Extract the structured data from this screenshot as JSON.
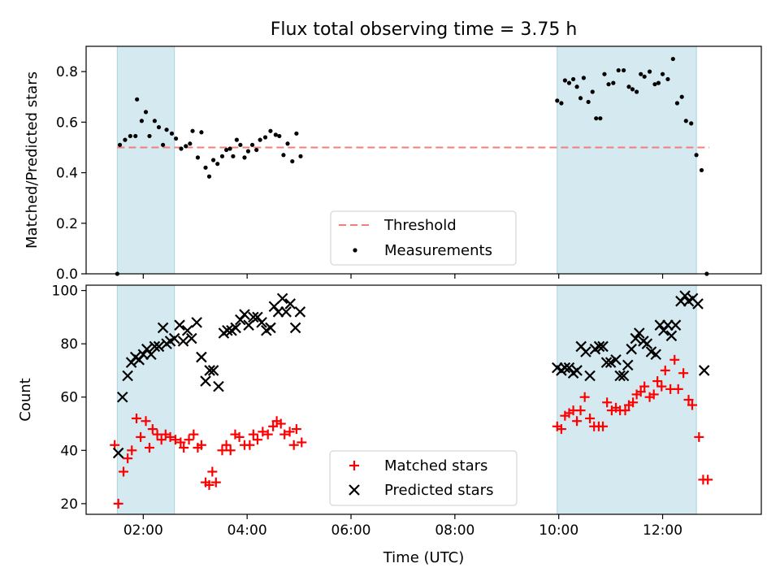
{
  "figure_title": "Flux total observing time = 3.75 h",
  "chart_data": [
    {
      "type": "scatter",
      "title": "Flux total observing time = 3.75 h",
      "xlabel": "",
      "ylabel": "Matched/Predicted stars",
      "xlim": [
        0.9,
        13.9
      ],
      "ylim": [
        0.0,
        0.9
      ],
      "x_unit": "hours UTC",
      "x_tick_labels": [
        "02:00",
        "04:00",
        "06:00",
        "08:00",
        "10:00",
        "12:00"
      ],
      "x_tick_values": [
        2,
        4,
        6,
        8,
        10,
        12
      ],
      "y_tick_labels": [
        "0.0",
        "0.2",
        "0.4",
        "0.6",
        "0.8"
      ],
      "y_tick_values": [
        0.0,
        0.2,
        0.4,
        0.6,
        0.8
      ],
      "shaded_spans": [
        [
          1.5,
          2.6
        ],
        [
          9.97,
          12.65
        ]
      ],
      "shade_color": "#d4eaf0",
      "threshold": {
        "name": "Threshold",
        "y": 0.5,
        "x_range": [
          1.5,
          12.9
        ],
        "color": "#f47c7c"
      },
      "series": [
        {
          "name": "Measurements",
          "color": "#000000",
          "marker": "dot",
          "points": [
            [
              1.5,
              0.0
            ],
            [
              1.55,
              0.51
            ],
            [
              1.65,
              0.53
            ],
            [
              1.75,
              0.545
            ],
            [
              1.85,
              0.545
            ],
            [
              1.88,
              0.69
            ],
            [
              1.97,
              0.605
            ],
            [
              2.05,
              0.64
            ],
            [
              2.12,
              0.545
            ],
            [
              2.22,
              0.605
            ],
            [
              2.3,
              0.58
            ],
            [
              2.38,
              0.51
            ],
            [
              2.45,
              0.57
            ],
            [
              2.55,
              0.555
            ],
            [
              2.63,
              0.535
            ],
            [
              2.73,
              0.495
            ],
            [
              2.82,
              0.505
            ],
            [
              2.9,
              0.515
            ],
            [
              2.95,
              0.565
            ],
            [
              3.05,
              0.46
            ],
            [
              3.12,
              0.56
            ],
            [
              3.2,
              0.42
            ],
            [
              3.27,
              0.385
            ],
            [
              3.35,
              0.45
            ],
            [
              3.43,
              0.435
            ],
            [
              3.52,
              0.465
            ],
            [
              3.6,
              0.49
            ],
            [
              3.67,
              0.495
            ],
            [
              3.73,
              0.465
            ],
            [
              3.8,
              0.53
            ],
            [
              3.87,
              0.51
            ],
            [
              3.95,
              0.46
            ],
            [
              4.02,
              0.485
            ],
            [
              4.1,
              0.51
            ],
            [
              4.18,
              0.49
            ],
            [
              4.25,
              0.53
            ],
            [
              4.35,
              0.54
            ],
            [
              4.45,
              0.565
            ],
            [
              4.55,
              0.55
            ],
            [
              4.62,
              0.545
            ],
            [
              4.7,
              0.47
            ],
            [
              4.78,
              0.515
            ],
            [
              4.87,
              0.445
            ],
            [
              4.95,
              0.555
            ],
            [
              5.03,
              0.465
            ],
            [
              9.97,
              0.685
            ],
            [
              10.05,
              0.675
            ],
            [
              10.12,
              0.765
            ],
            [
              10.2,
              0.755
            ],
            [
              10.28,
              0.77
            ],
            [
              10.35,
              0.74
            ],
            [
              10.42,
              0.695
            ],
            [
              10.48,
              0.775
            ],
            [
              10.57,
              0.68
            ],
            [
              10.65,
              0.72
            ],
            [
              10.72,
              0.615
            ],
            [
              10.8,
              0.615
            ],
            [
              10.88,
              0.79
            ],
            [
              10.96,
              0.75
            ],
            [
              11.05,
              0.755
            ],
            [
              11.15,
              0.805
            ],
            [
              11.25,
              0.805
            ],
            [
              11.35,
              0.74
            ],
            [
              11.42,
              0.73
            ],
            [
              11.5,
              0.72
            ],
            [
              11.58,
              0.79
            ],
            [
              11.65,
              0.78
            ],
            [
              11.75,
              0.8
            ],
            [
              11.85,
              0.75
            ],
            [
              11.92,
              0.755
            ],
            [
              12.0,
              0.79
            ],
            [
              12.1,
              0.77
            ],
            [
              12.2,
              0.85
            ],
            [
              12.28,
              0.675
            ],
            [
              12.37,
              0.7
            ],
            [
              12.45,
              0.605
            ],
            [
              12.55,
              0.595
            ],
            [
              12.65,
              0.47
            ],
            [
              12.75,
              0.41
            ],
            [
              12.85,
              0.0
            ]
          ]
        }
      ],
      "legend": {
        "position": "lower center",
        "entries": [
          "Threshold",
          "Measurements"
        ]
      }
    },
    {
      "type": "scatter",
      "title": "",
      "xlabel": "Time (UTC)",
      "ylabel": "Count",
      "xlim": [
        0.9,
        13.9
      ],
      "ylim": [
        16,
        102
      ],
      "x_unit": "hours UTC",
      "x_tick_labels": [
        "02:00",
        "04:00",
        "06:00",
        "08:00",
        "10:00",
        "12:00"
      ],
      "x_tick_values": [
        2,
        4,
        6,
        8,
        10,
        12
      ],
      "y_tick_labels": [
        "20",
        "40",
        "60",
        "80",
        "100"
      ],
      "y_tick_values": [
        20,
        40,
        60,
        80,
        100
      ],
      "shaded_spans": [
        [
          1.5,
          2.6
        ],
        [
          9.97,
          12.65
        ]
      ],
      "shade_color": "#d4eaf0",
      "series": [
        {
          "name": "Matched stars",
          "color": "#ff0000",
          "marker": "plus",
          "points": [
            [
              1.45,
              42
            ],
            [
              1.52,
              20
            ],
            [
              1.62,
              32
            ],
            [
              1.7,
              37
            ],
            [
              1.78,
              40
            ],
            [
              1.87,
              52
            ],
            [
              1.95,
              45
            ],
            [
              2.05,
              51
            ],
            [
              2.12,
              41
            ],
            [
              2.18,
              48
            ],
            [
              2.27,
              46
            ],
            [
              2.35,
              44
            ],
            [
              2.43,
              46
            ],
            [
              2.52,
              45
            ],
            [
              2.62,
              44
            ],
            [
              2.72,
              43
            ],
            [
              2.78,
              41
            ],
            [
              2.88,
              44
            ],
            [
              2.97,
              46
            ],
            [
              3.05,
              41
            ],
            [
              3.12,
              42
            ],
            [
              3.2,
              28
            ],
            [
              3.27,
              27
            ],
            [
              3.33,
              32
            ],
            [
              3.4,
              28
            ],
            [
              3.52,
              40
            ],
            [
              3.6,
              42
            ],
            [
              3.68,
              40
            ],
            [
              3.77,
              46
            ],
            [
              3.85,
              45
            ],
            [
              3.95,
              42
            ],
            [
              4.05,
              42
            ],
            [
              4.12,
              46
            ],
            [
              4.2,
              44
            ],
            [
              4.3,
              47
            ],
            [
              4.4,
              46
            ],
            [
              4.5,
              49
            ],
            [
              4.57,
              51
            ],
            [
              4.65,
              50
            ],
            [
              4.72,
              46
            ],
            [
              4.82,
              47
            ],
            [
              4.9,
              42
            ],
            [
              4.95,
              48
            ],
            [
              5.05,
              43
            ],
            [
              9.97,
              49
            ],
            [
              10.05,
              48
            ],
            [
              10.12,
              53
            ],
            [
              10.2,
              54
            ],
            [
              10.28,
              55
            ],
            [
              10.35,
              51
            ],
            [
              10.42,
              55
            ],
            [
              10.5,
              60
            ],
            [
              10.6,
              52
            ],
            [
              10.68,
              49
            ],
            [
              10.77,
              49
            ],
            [
              10.85,
              49
            ],
            [
              10.93,
              58
            ],
            [
              11.02,
              55
            ],
            [
              11.1,
              56
            ],
            [
              11.18,
              55
            ],
            [
              11.28,
              55
            ],
            [
              11.35,
              57
            ],
            [
              11.43,
              58
            ],
            [
              11.5,
              61
            ],
            [
              11.58,
              62
            ],
            [
              11.65,
              64
            ],
            [
              11.75,
              60
            ],
            [
              11.83,
              61
            ],
            [
              11.9,
              66
            ],
            [
              11.98,
              64
            ],
            [
              12.05,
              70
            ],
            [
              12.15,
              63
            ],
            [
              12.23,
              74
            ],
            [
              12.3,
              63
            ],
            [
              12.4,
              69
            ],
            [
              12.5,
              59
            ],
            [
              12.57,
              57
            ],
            [
              12.7,
              45
            ],
            [
              12.78,
              29
            ],
            [
              12.87,
              29
            ]
          ]
        },
        {
          "name": "Predicted stars",
          "color": "#000000",
          "marker": "x",
          "points": [
            [
              1.52,
              39
            ],
            [
              1.6,
              60
            ],
            [
              1.7,
              68
            ],
            [
              1.77,
              73
            ],
            [
              1.85,
              75
            ],
            [
              1.92,
              74
            ],
            [
              2.0,
              76
            ],
            [
              2.07,
              78
            ],
            [
              2.15,
              76
            ],
            [
              2.22,
              79
            ],
            [
              2.3,
              79
            ],
            [
              2.38,
              86
            ],
            [
              2.45,
              80
            ],
            [
              2.52,
              81
            ],
            [
              2.6,
              82
            ],
            [
              2.7,
              87
            ],
            [
              2.77,
              81
            ],
            [
              2.85,
              85
            ],
            [
              2.93,
              82
            ],
            [
              3.03,
              88
            ],
            [
              3.12,
              75
            ],
            [
              3.2,
              66
            ],
            [
              3.28,
              70
            ],
            [
              3.35,
              70
            ],
            [
              3.45,
              64
            ],
            [
              3.55,
              84
            ],
            [
              3.62,
              85
            ],
            [
              3.7,
              85
            ],
            [
              3.78,
              86
            ],
            [
              3.87,
              89
            ],
            [
              3.95,
              91
            ],
            [
              4.03,
              87
            ],
            [
              4.12,
              90
            ],
            [
              4.2,
              90
            ],
            [
              4.28,
              88
            ],
            [
              4.37,
              85
            ],
            [
              4.45,
              86
            ],
            [
              4.52,
              94
            ],
            [
              4.6,
              92
            ],
            [
              4.68,
              97
            ],
            [
              4.75,
              92
            ],
            [
              4.83,
              95
            ],
            [
              4.93,
              86
            ],
            [
              5.02,
              92
            ],
            [
              9.97,
              71
            ],
            [
              10.05,
              70
            ],
            [
              10.12,
              71
            ],
            [
              10.2,
              71
            ],
            [
              10.28,
              69
            ],
            [
              10.35,
              70
            ],
            [
              10.43,
              79
            ],
            [
              10.52,
              77
            ],
            [
              10.6,
              68
            ],
            [
              10.7,
              78
            ],
            [
              10.78,
              79
            ],
            [
              10.85,
              79
            ],
            [
              10.92,
              73
            ],
            [
              11.0,
              73
            ],
            [
              11.1,
              74
            ],
            [
              11.18,
              68
            ],
            [
              11.25,
              68
            ],
            [
              11.33,
              72
            ],
            [
              11.4,
              78
            ],
            [
              11.48,
              82
            ],
            [
              11.55,
              84
            ],
            [
              11.63,
              81
            ],
            [
              11.7,
              80
            ],
            [
              11.78,
              77
            ],
            [
              11.87,
              76
            ],
            [
              11.95,
              87
            ],
            [
              12.02,
              85
            ],
            [
              12.1,
              87
            ],
            [
              12.17,
              83
            ],
            [
              12.25,
              87
            ],
            [
              12.35,
              96
            ],
            [
              12.43,
              98
            ],
            [
              12.5,
              96
            ],
            [
              12.58,
              97
            ],
            [
              12.68,
              95
            ],
            [
              12.8,
              70
            ]
          ]
        }
      ],
      "legend": {
        "position": "lower center",
        "entries": [
          "Matched stars",
          "Predicted stars"
        ]
      }
    }
  ]
}
